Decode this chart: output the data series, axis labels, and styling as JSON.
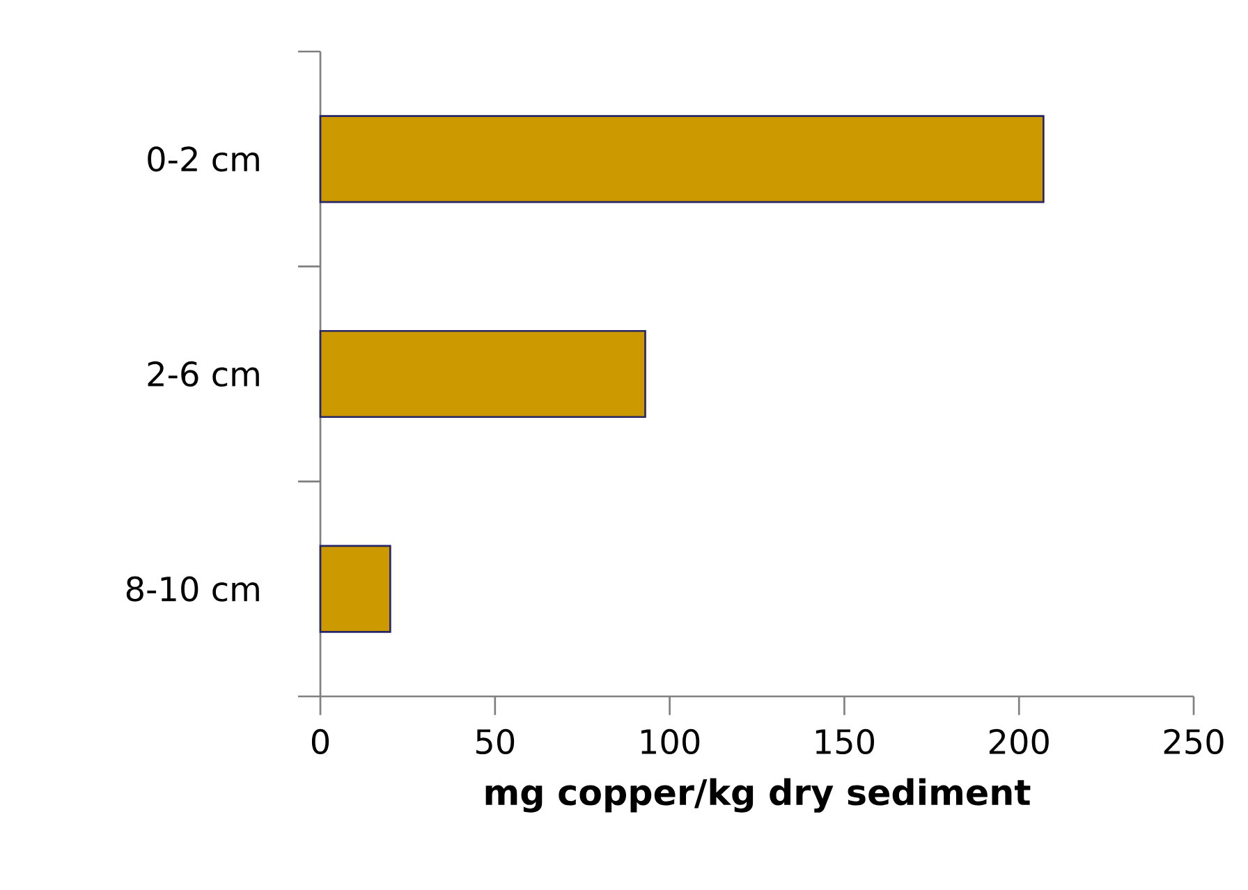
{
  "chart_data": {
    "type": "bar",
    "orientation": "horizontal",
    "categories": [
      "0-2 cm",
      "2-6 cm",
      "8-10 cm"
    ],
    "values": [
      207,
      93,
      20
    ],
    "color": "#cc9900",
    "xlabel": "mg copper/kg dry sediment",
    "xlim": [
      0,
      250
    ],
    "xticks": [
      0,
      50,
      100,
      150,
      200,
      250
    ]
  }
}
